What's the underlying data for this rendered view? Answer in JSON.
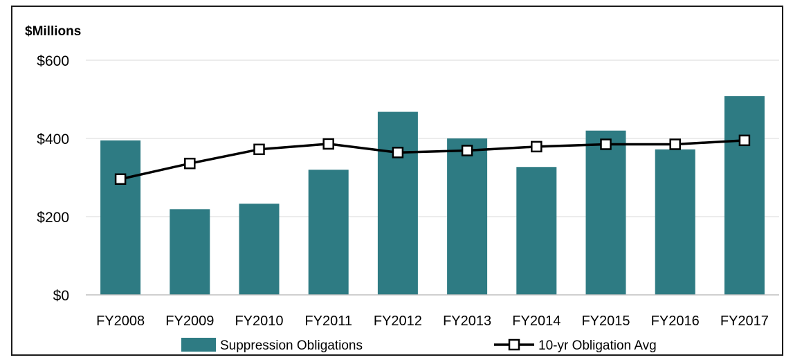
{
  "chart_data": {
    "type": "bar",
    "unit_label": "$Millions",
    "categories": [
      "FY2008",
      "FY2009",
      "FY2010",
      "FY2011",
      "FY2012",
      "FY2013",
      "FY2014",
      "FY2015",
      "FY2016",
      "FY2017"
    ],
    "series": [
      {
        "name": "Suppression Obligations",
        "type": "bar",
        "color": "#2e7b83",
        "values": [
          395,
          219,
          233,
          320,
          468,
          400,
          327,
          420,
          372,
          508
        ]
      },
      {
        "name": "10-yr Obligation Avg",
        "type": "line",
        "color": "#000000",
        "marker": "hollow-square",
        "values": [
          296,
          336,
          372,
          386,
          364,
          369,
          379,
          385,
          385,
          395
        ]
      }
    ],
    "ylim": [
      0,
      600
    ],
    "yticks": [
      0,
      200,
      400,
      600
    ],
    "ytick_labels": [
      "$0",
      "$200",
      "$400",
      "$600"
    ],
    "grid": true,
    "legend_position": "bottom"
  }
}
